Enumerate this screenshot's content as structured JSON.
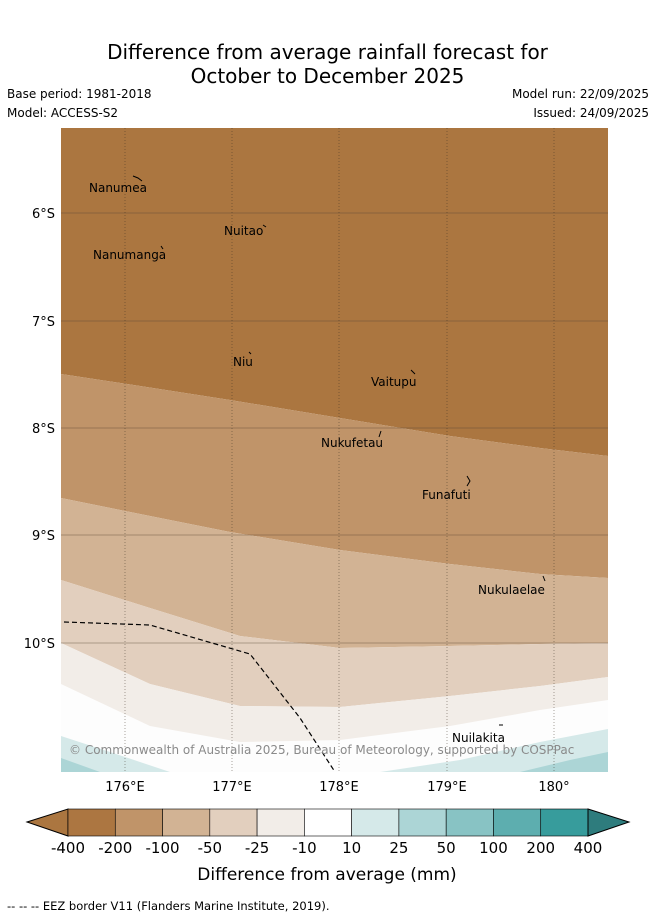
{
  "title_line1": "Difference from average rainfall forecast for",
  "title_line2": "October to December 2025",
  "base_period": "Base period: 1981-2018",
  "model": "Model: ACCESS-S2",
  "model_run": "Model run: 22/09/2025",
  "issued": "Issued: 24/09/2025",
  "lat_labels": [
    "6°S",
    "7°S",
    "8°S",
    "9°S",
    "10°S"
  ],
  "lon_labels": [
    "176°E",
    "177°E",
    "178°E",
    "179°E",
    "180°"
  ],
  "places": [
    "Nanumea",
    "Nuitao",
    "Nanumanga",
    "Niu",
    "Vaitupu",
    "Nukufetau",
    "Funafuti",
    "Nukulaelae",
    "Nuilakita"
  ],
  "copyright": "© Commonwealth of Australia 2025, Bureau of Meteorology, supported by COSPPac",
  "legend": {
    "ticks": [
      "-400",
      "-200",
      "-100",
      "-50",
      "-25",
      "-10",
      "10",
      "25",
      "50",
      "100",
      "200",
      "400"
    ],
    "colors": [
      "#ab7640",
      "#ac7641",
      "#c09469",
      "#d2b394",
      "#e2cfbe",
      "#f2ede8",
      "#ffffff",
      "#d5e9e9",
      "#acd5d6",
      "#88c3c4",
      "#5daeaf",
      "#379c9c",
      "#2e7c7d"
    ],
    "label": "Difference from average (mm)"
  },
  "footnote": "--  --  -- EEZ border V11 (Flanders Marine Institute, 2019)."
}
